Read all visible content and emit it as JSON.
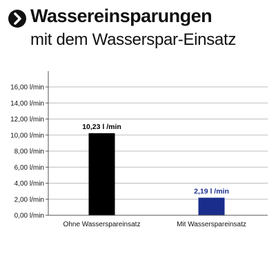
{
  "header": {
    "title": "Wassereinsparungen",
    "subtitle": "mit dem Wasserspar-Einsatz",
    "icon": "arrow-right-circle-icon"
  },
  "chart_data": {
    "type": "bar",
    "categories": [
      "Ohne Wasserspareinsatz",
      "Mit Wasserspareinsatz"
    ],
    "values": [
      10.23,
      2.19
    ],
    "data_labels": [
      "10,23 l /min",
      "2,19 l /min"
    ],
    "bar_colors": [
      "#000000",
      "#1a2d8c"
    ],
    "label_colors": [
      "#000000",
      "#1a2d8c"
    ],
    "y_ticks": [
      0,
      2,
      4,
      6,
      8,
      10,
      12,
      14,
      16
    ],
    "y_tick_labels": [
      "0,00 l/min",
      "2,00 l/min",
      "4,00 l/min",
      "6,00 l/min",
      "8,00 l/min",
      "10,00 l/min",
      "12,00 l/min",
      "14,00 l/min",
      "16,00 l/min"
    ],
    "ylim": [
      0,
      16
    ],
    "grid": true,
    "title": "",
    "xlabel": "",
    "ylabel": ""
  }
}
